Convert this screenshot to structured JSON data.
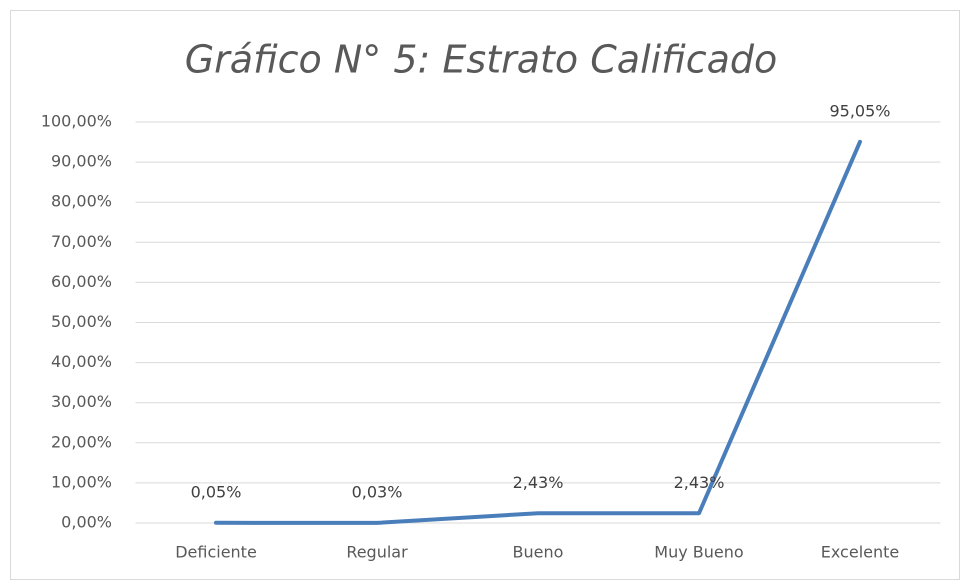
{
  "chart_data": {
    "type": "line",
    "title": "Gráfico N° 5: Estrato Calificado",
    "categories": [
      "Deficiente",
      "Regular",
      "Bueno",
      "Muy Bueno",
      "Excelente"
    ],
    "values": [
      0.05,
      0.03,
      2.43,
      2.43,
      95.05
    ],
    "value_labels": [
      "0,05%",
      "0,03%",
      "2,43%",
      "2,43%",
      "95,05%"
    ],
    "color": "#4a7ebb",
    "ylim": [
      0,
      100
    ],
    "yticks": [
      {
        "value": 0,
        "label": "0,00%"
      },
      {
        "value": 10,
        "label": "10,00%"
      },
      {
        "value": 20,
        "label": "20,00%"
      },
      {
        "value": 30,
        "label": "30,00%"
      },
      {
        "value": 40,
        "label": "40,00%"
      },
      {
        "value": 50,
        "label": "50,00%"
      },
      {
        "value": 60,
        "label": "60,00%"
      },
      {
        "value": 70,
        "label": "70,00%"
      },
      {
        "value": 80,
        "label": "80,00%"
      },
      {
        "value": 90,
        "label": "90,00%"
      },
      {
        "value": 100,
        "label": "100,00%"
      }
    ],
    "grid": true
  }
}
